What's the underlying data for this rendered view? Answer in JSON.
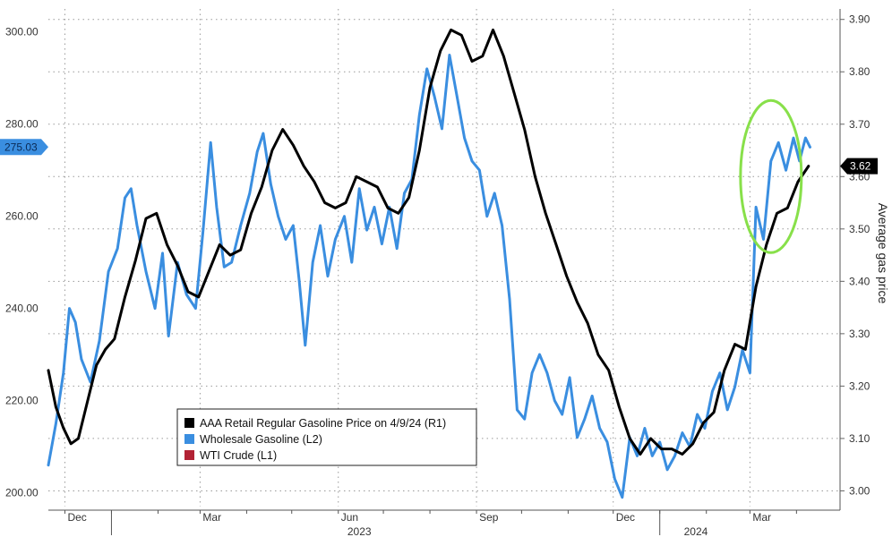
{
  "chart_data": {
    "type": "line",
    "ylabel_right": "Average gas price",
    "left_axis": {
      "ylim": [
        197,
        305
      ],
      "ticks": [
        "200.00",
        "220.00",
        "240.00",
        "260.00",
        "280.00",
        "300.00"
      ]
    },
    "right_axis": {
      "ylim": [
        2.97,
        3.92
      ],
      "ticks": [
        "3.00",
        "3.10",
        "3.20",
        "3.30",
        "3.40",
        "3.50",
        "3.60",
        "3.70",
        "3.80",
        "3.90"
      ]
    },
    "x_ticks": [
      {
        "label": "Dec",
        "date": "2022-12-01"
      },
      {
        "label": "Mar",
        "date": "2023-03-01"
      },
      {
        "label": "Jun",
        "date": "2023-06-01"
      },
      {
        "label": "Sep",
        "date": "2023-09-01"
      },
      {
        "label": "Dec",
        "date": "2023-12-01"
      },
      {
        "label": "Mar",
        "date": "2024-03-01"
      }
    ],
    "year_labels": [
      {
        "label": "2023",
        "date": "2023-06-15"
      },
      {
        "label": "2024",
        "date": "2024-01-25"
      }
    ],
    "year_separators": [
      "2023-01-01",
      "2024-01-01"
    ],
    "grid": true,
    "legend": {
      "placement": "bottom-center",
      "entries": [
        {
          "label": "AAA Retail Regular Gasoline Price on 4/9/24 (R1)",
          "color": "#000000"
        },
        {
          "label": "Wholesale Gasoline (L2)",
          "color": "#3a8ee0"
        },
        {
          "label": "WTI Crude (L1)",
          "color": "#b22234"
        }
      ]
    },
    "last_value_badges": [
      {
        "label": "275.03",
        "axis": "left",
        "value": 275.03,
        "color": "#3a8ee0"
      },
      {
        "label": "3.62",
        "axis": "right",
        "value": 3.62,
        "color": "#000000"
      }
    ],
    "annotation": {
      "type": "circle",
      "color": "#88e04a",
      "center_date": "2024-03-15",
      "center_value_right": 3.6
    },
    "series": [
      {
        "name": "AAA Retail Regular Gasoline Price on 4/9/24 (R1)",
        "axis": "right",
        "color": "#000000",
        "points": [
          [
            "2022-11-20",
            3.23
          ],
          [
            "2022-11-25",
            3.16
          ],
          [
            "2022-11-30",
            3.12
          ],
          [
            "2022-12-05",
            3.09
          ],
          [
            "2022-12-10",
            3.1
          ],
          [
            "2022-12-16",
            3.17
          ],
          [
            "2022-12-22",
            3.24
          ],
          [
            "2022-12-28",
            3.27
          ],
          [
            "2023-01-03",
            3.29
          ],
          [
            "2023-01-10",
            3.37
          ],
          [
            "2023-01-17",
            3.44
          ],
          [
            "2023-01-24",
            3.52
          ],
          [
            "2023-01-31",
            3.53
          ],
          [
            "2023-02-07",
            3.47
          ],
          [
            "2023-02-14",
            3.43
          ],
          [
            "2023-02-21",
            3.38
          ],
          [
            "2023-02-28",
            3.37
          ],
          [
            "2023-03-07",
            3.42
          ],
          [
            "2023-03-14",
            3.47
          ],
          [
            "2023-03-21",
            3.45
          ],
          [
            "2023-03-28",
            3.46
          ],
          [
            "2023-04-04",
            3.53
          ],
          [
            "2023-04-11",
            3.58
          ],
          [
            "2023-04-18",
            3.65
          ],
          [
            "2023-04-25",
            3.69
          ],
          [
            "2023-05-02",
            3.66
          ],
          [
            "2023-05-09",
            3.62
          ],
          [
            "2023-05-16",
            3.59
          ],
          [
            "2023-05-23",
            3.55
          ],
          [
            "2023-05-30",
            3.54
          ],
          [
            "2023-06-06",
            3.55
          ],
          [
            "2023-06-13",
            3.6
          ],
          [
            "2023-06-20",
            3.59
          ],
          [
            "2023-06-27",
            3.58
          ],
          [
            "2023-07-04",
            3.54
          ],
          [
            "2023-07-11",
            3.53
          ],
          [
            "2023-07-18",
            3.56
          ],
          [
            "2023-07-25",
            3.65
          ],
          [
            "2023-08-01",
            3.77
          ],
          [
            "2023-08-08",
            3.84
          ],
          [
            "2023-08-15",
            3.88
          ],
          [
            "2023-08-22",
            3.87
          ],
          [
            "2023-08-29",
            3.82
          ],
          [
            "2023-09-05",
            3.83
          ],
          [
            "2023-09-12",
            3.88
          ],
          [
            "2023-09-19",
            3.83
          ],
          [
            "2023-09-26",
            3.76
          ],
          [
            "2023-10-03",
            3.69
          ],
          [
            "2023-10-10",
            3.6
          ],
          [
            "2023-10-17",
            3.53
          ],
          [
            "2023-10-24",
            3.47
          ],
          [
            "2023-10-31",
            3.41
          ],
          [
            "2023-11-07",
            3.36
          ],
          [
            "2023-11-14",
            3.32
          ],
          [
            "2023-11-21",
            3.26
          ],
          [
            "2023-11-28",
            3.23
          ],
          [
            "2023-12-05",
            3.16
          ],
          [
            "2023-12-12",
            3.1
          ],
          [
            "2023-12-19",
            3.07
          ],
          [
            "2023-12-26",
            3.1
          ],
          [
            "2024-01-02",
            3.08
          ],
          [
            "2024-01-09",
            3.08
          ],
          [
            "2024-01-16",
            3.07
          ],
          [
            "2024-01-23",
            3.09
          ],
          [
            "2024-01-30",
            3.13
          ],
          [
            "2024-02-06",
            3.15
          ],
          [
            "2024-02-13",
            3.23
          ],
          [
            "2024-02-20",
            3.28
          ],
          [
            "2024-02-27",
            3.27
          ],
          [
            "2024-03-05",
            3.39
          ],
          [
            "2024-03-12",
            3.47
          ],
          [
            "2024-03-19",
            3.53
          ],
          [
            "2024-03-26",
            3.54
          ],
          [
            "2024-04-02",
            3.59
          ],
          [
            "2024-04-09",
            3.62
          ]
        ]
      },
      {
        "name": "Wholesale Gasoline (L2)",
        "axis": "left",
        "color": "#3a8ee0",
        "points": [
          [
            "2022-11-20",
            206
          ],
          [
            "2022-11-25",
            215
          ],
          [
            "2022-11-30",
            226
          ],
          [
            "2022-12-04",
            240
          ],
          [
            "2022-12-08",
            237
          ],
          [
            "2022-12-12",
            229
          ],
          [
            "2022-12-18",
            224
          ],
          [
            "2022-12-24",
            233
          ],
          [
            "2022-12-30",
            248
          ],
          [
            "2023-01-05",
            253
          ],
          [
            "2023-01-10",
            264
          ],
          [
            "2023-01-14",
            266
          ],
          [
            "2023-01-18",
            258
          ],
          [
            "2023-01-24",
            248
          ],
          [
            "2023-01-30",
            240
          ],
          [
            "2023-02-04",
            252
          ],
          [
            "2023-02-08",
            234
          ],
          [
            "2023-02-14",
            250
          ],
          [
            "2023-02-20",
            243
          ],
          [
            "2023-02-26",
            240
          ],
          [
            "2023-03-03",
            257
          ],
          [
            "2023-03-08",
            276
          ],
          [
            "2023-03-12",
            262
          ],
          [
            "2023-03-17",
            249
          ],
          [
            "2023-03-22",
            250
          ],
          [
            "2023-03-28",
            258
          ],
          [
            "2023-04-03",
            265
          ],
          [
            "2023-04-08",
            274
          ],
          [
            "2023-04-12",
            278
          ],
          [
            "2023-04-17",
            267
          ],
          [
            "2023-04-22",
            260
          ],
          [
            "2023-04-27",
            255
          ],
          [
            "2023-05-02",
            258
          ],
          [
            "2023-05-06",
            246
          ],
          [
            "2023-05-10",
            232
          ],
          [
            "2023-05-15",
            250
          ],
          [
            "2023-05-20",
            258
          ],
          [
            "2023-05-25",
            247
          ],
          [
            "2023-05-30",
            255
          ],
          [
            "2023-06-05",
            260
          ],
          [
            "2023-06-10",
            250
          ],
          [
            "2023-06-15",
            266
          ],
          [
            "2023-06-20",
            257
          ],
          [
            "2023-06-25",
            262
          ],
          [
            "2023-06-30",
            254
          ],
          [
            "2023-07-05",
            262
          ],
          [
            "2023-07-10",
            253
          ],
          [
            "2023-07-15",
            265
          ],
          [
            "2023-07-20",
            268
          ],
          [
            "2023-07-25",
            282
          ],
          [
            "2023-07-30",
            292
          ],
          [
            "2023-08-04",
            286
          ],
          [
            "2023-08-09",
            279
          ],
          [
            "2023-08-14",
            295
          ],
          [
            "2023-08-19",
            286
          ],
          [
            "2023-08-24",
            277
          ],
          [
            "2023-08-29",
            272
          ],
          [
            "2023-09-03",
            270
          ],
          [
            "2023-09-08",
            260
          ],
          [
            "2023-09-13",
            265
          ],
          [
            "2023-09-18",
            258
          ],
          [
            "2023-09-23",
            242
          ],
          [
            "2023-09-28",
            218
          ],
          [
            "2023-10-03",
            216
          ],
          [
            "2023-10-08",
            226
          ],
          [
            "2023-10-13",
            230
          ],
          [
            "2023-10-18",
            226
          ],
          [
            "2023-10-23",
            220
          ],
          [
            "2023-10-28",
            217
          ],
          [
            "2023-11-02",
            225
          ],
          [
            "2023-11-07",
            212
          ],
          [
            "2023-11-12",
            216
          ],
          [
            "2023-11-17",
            221
          ],
          [
            "2023-11-22",
            214
          ],
          [
            "2023-11-27",
            211
          ],
          [
            "2023-12-02",
            203
          ],
          [
            "2023-12-07",
            199
          ],
          [
            "2023-12-12",
            212
          ],
          [
            "2023-12-17",
            208
          ],
          [
            "2023-12-22",
            214
          ],
          [
            "2023-12-27",
            208
          ],
          [
            "2024-01-01",
            211
          ],
          [
            "2024-01-06",
            205
          ],
          [
            "2024-01-11",
            208
          ],
          [
            "2024-01-16",
            213
          ],
          [
            "2024-01-21",
            210
          ],
          [
            "2024-01-26",
            217
          ],
          [
            "2024-01-31",
            214
          ],
          [
            "2024-02-05",
            222
          ],
          [
            "2024-02-10",
            226
          ],
          [
            "2024-02-15",
            218
          ],
          [
            "2024-02-20",
            223
          ],
          [
            "2024-02-25",
            231
          ],
          [
            "2024-03-01",
            226
          ],
          [
            "2024-03-05",
            262
          ],
          [
            "2024-03-10",
            255
          ],
          [
            "2024-03-15",
            272
          ],
          [
            "2024-03-20",
            276
          ],
          [
            "2024-03-25",
            270
          ],
          [
            "2024-03-30",
            277
          ],
          [
            "2024-04-03",
            272
          ],
          [
            "2024-04-07",
            277
          ],
          [
            "2024-04-10",
            275
          ]
        ]
      }
    ]
  }
}
